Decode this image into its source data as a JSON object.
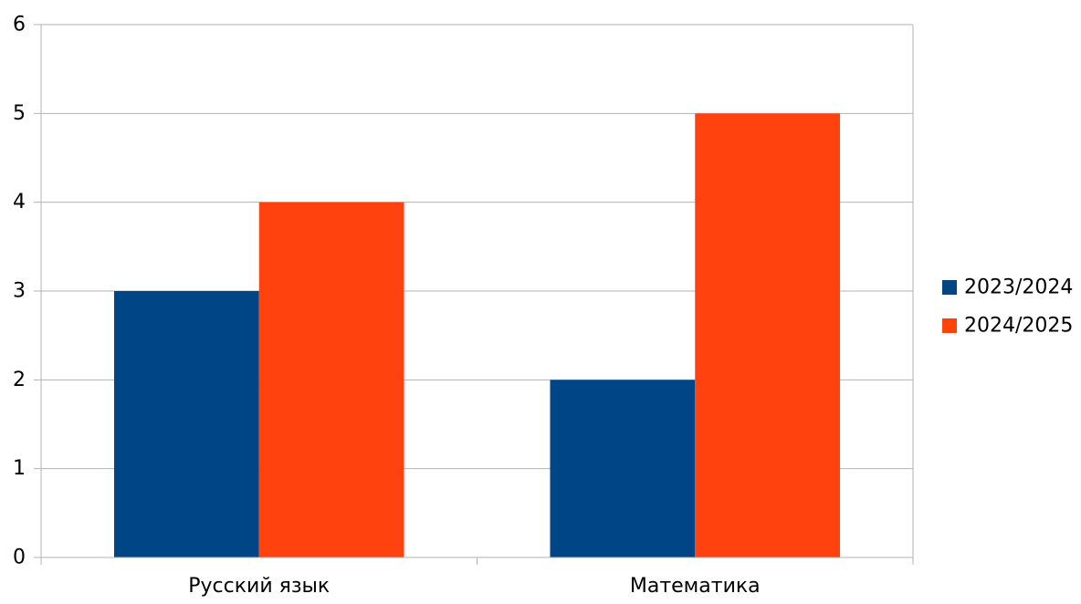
{
  "chart_data": {
    "type": "bar",
    "categories": [
      "Русский язык",
      "Математика"
    ],
    "series": [
      {
        "name": "2023/2024",
        "values": [
          3,
          2
        ],
        "color": "#004586"
      },
      {
        "name": "2024/2025",
        "values": [
          4,
          5
        ],
        "color": "#ff420e"
      }
    ],
    "ylim": [
      0,
      6
    ],
    "yticks": [
      "0",
      "1",
      "2",
      "3",
      "4",
      "5",
      "6"
    ],
    "grid": true,
    "legend_position": "right",
    "title": "",
    "xlabel": "",
    "ylabel": ""
  }
}
